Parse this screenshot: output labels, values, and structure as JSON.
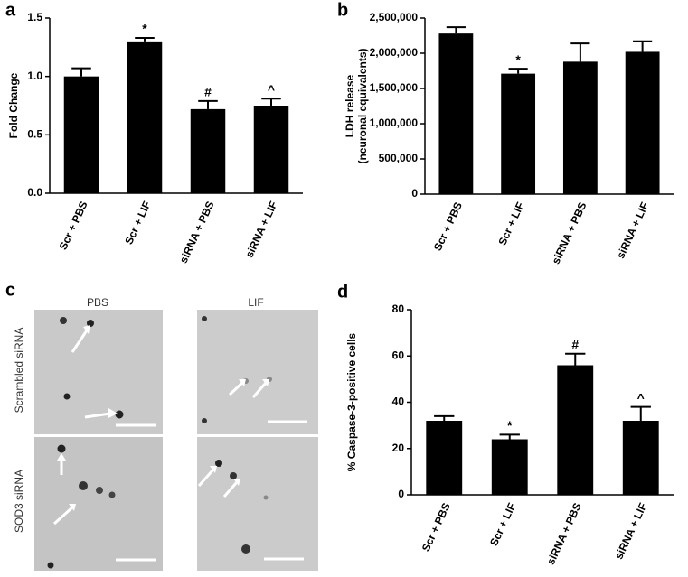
{
  "chart_data": [
    {
      "type": "bar",
      "panel_label": "a",
      "ylabel": "Fold Change",
      "categories": [
        "Scr + PBS",
        "Scr + LIF",
        "siRNA + PBS",
        "siRNA + LIF"
      ],
      "values": [
        1.0,
        1.3,
        0.72,
        0.75
      ],
      "errors": [
        0.07,
        0.03,
        0.07,
        0.06
      ],
      "annotations": [
        null,
        "*",
        "#",
        "^"
      ],
      "color": "#000000",
      "ylim": [
        0,
        1.5
      ],
      "yticks": [
        {
          "value": 0,
          "label": "0.0"
        },
        0.5,
        {
          "value": 1,
          "label": "1.0"
        },
        1.5
      ]
    },
    {
      "type": "bar",
      "panel_label": "b",
      "ylabel": [
        "LDH release",
        "(neuronal equivalents)"
      ],
      "categories": [
        "Scr + PBS",
        "Scr + LIF",
        "siRNA + PBS",
        "siRNA + LIF"
      ],
      "values": [
        2280000,
        1710000,
        1880000,
        2020000
      ],
      "errors": [
        90000,
        70000,
        260000,
        150000
      ],
      "annotations": [
        null,
        "*",
        null,
        null
      ],
      "color": "#000000",
      "ylim": [
        0,
        2500000
      ],
      "yticks": [
        0,
        {
          "value": 500000,
          "label": "500,000"
        },
        {
          "value": 1000000,
          "label": "1,000,000"
        },
        {
          "value": 1500000,
          "label": "1,500,000"
        },
        {
          "value": 2000000,
          "label": "2,000,000"
        },
        {
          "value": 2500000,
          "label": "2,500,000"
        }
      ]
    },
    {
      "type": "bar",
      "panel_label": "d",
      "ylabel": "% Caspase-3-positive cells",
      "categories": [
        "Scr + PBS",
        "Scr + LIF",
        "siRNA + PBS",
        "siRNA + LIF"
      ],
      "values": [
        32,
        24,
        56,
        32
      ],
      "errors": [
        2,
        2,
        5,
        6
      ],
      "annotations": [
        null,
        "*",
        "#",
        "^"
      ],
      "color": "#000000",
      "ylim": [
        0,
        80
      ],
      "yticks": [
        0,
        20,
        40,
        60,
        80
      ]
    }
  ],
  "micrographs": {
    "panel_label": "c",
    "columns": [
      "PBS",
      "LIF"
    ],
    "rows": [
      "Scrambled siRNA",
      "SOD3 siRNA"
    ]
  }
}
